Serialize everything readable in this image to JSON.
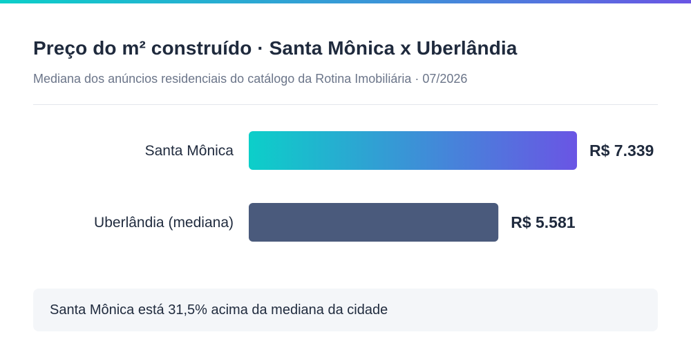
{
  "header": {
    "title": "Preço do m² construído · Santa Mônica x Uberlândia",
    "subtitle": "Mediana dos anúncios residenciais do catálogo da Rotina Imobiliária · 07/2026"
  },
  "chart_data": {
    "type": "bar",
    "orientation": "horizontal",
    "categories": [
      "Santa Mônica",
      "Uberlândia (mediana)"
    ],
    "values": [
      7339,
      5581
    ],
    "value_labels": [
      "R$ 7.339",
      "R$ 5.581"
    ],
    "colors": {
      "highlight_gradient": [
        "#0ccfc9",
        "#6a55e4"
      ],
      "baseline": "#4a5a7c"
    },
    "title": "Preço do m² construído · Santa Mônica x Uberlândia",
    "xlabel": "",
    "ylabel": "",
    "grid": false,
    "legend": "none"
  },
  "callout": {
    "text": "Santa Mônica está 31,5% acima da mediana da cidade"
  }
}
